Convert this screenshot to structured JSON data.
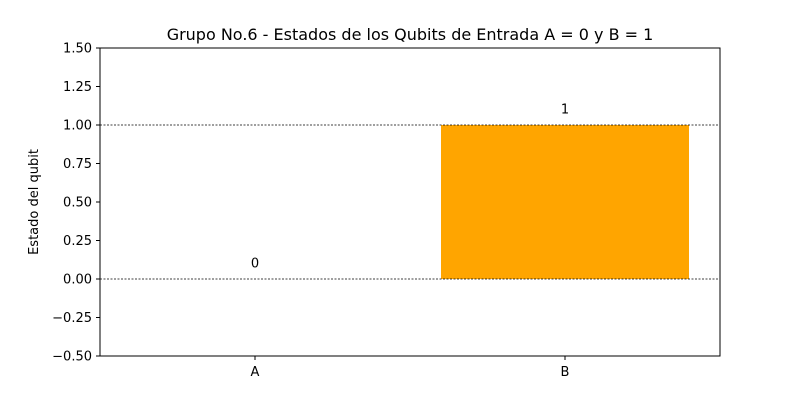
{
  "chart_data": {
    "type": "bar",
    "title": "Grupo No.6 - Estados de los Qubits de Entrada A = 0 y B = 1",
    "xlabel": "",
    "ylabel": "Estado del qubit",
    "categories": [
      "A",
      "B"
    ],
    "values": [
      0,
      1
    ],
    "data_labels": [
      "0",
      "1"
    ],
    "bar_color": "#ffa500",
    "ylim": [
      -0.5,
      1.5
    ],
    "yticks": [
      -0.5,
      -0.25,
      0.0,
      0.25,
      0.5,
      0.75,
      1.0,
      1.25,
      1.5
    ],
    "ytick_labels": [
      "−0.50",
      "−0.25",
      "0.00",
      "0.25",
      "0.50",
      "0.75",
      "1.00",
      "1.25",
      "1.50"
    ],
    "reference_lines": [
      0,
      1
    ],
    "reference_line_style": "dashed",
    "grid": false,
    "legend": "none"
  }
}
